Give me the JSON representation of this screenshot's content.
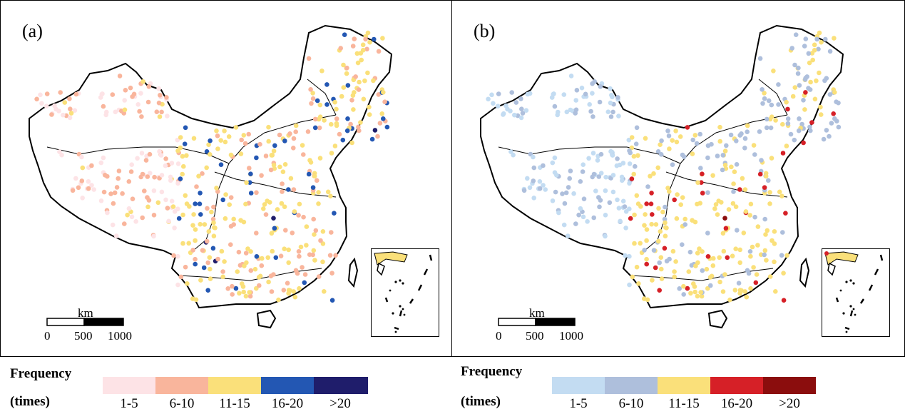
{
  "panels": [
    {
      "label": "(a)",
      "scale": {
        "unit": "km",
        "ticks": [
          "0",
          "500",
          "1000"
        ]
      },
      "legend": {
        "title": "Frequency",
        "unit": "(times)",
        "classes": [
          {
            "label": "1-5",
            "color": "#fde3e6"
          },
          {
            "label": "6-10",
            "color": "#f9b59c"
          },
          {
            "label": "11-15",
            "color": "#fae07a"
          },
          {
            "label": "16-20",
            "color": "#2357b3"
          },
          {
            "label": ">20",
            "color": "#1f1d6b"
          }
        ]
      }
    },
    {
      "label": "(b)",
      "scale": {
        "unit": "km",
        "ticks": [
          "0",
          "500",
          "1000"
        ]
      },
      "legend": {
        "title": "Frequency",
        "unit": "(times)",
        "classes": [
          {
            "label": "1-5",
            "color": "#c3dcf2"
          },
          {
            "label": "6-10",
            "color": "#aebfdc"
          },
          {
            "label": "11-15",
            "color": "#fae07a"
          },
          {
            "label": "16-20",
            "color": "#d62027"
          },
          {
            "label": ">20",
            "color": "#8b0d0d"
          }
        ]
      }
    }
  ]
}
